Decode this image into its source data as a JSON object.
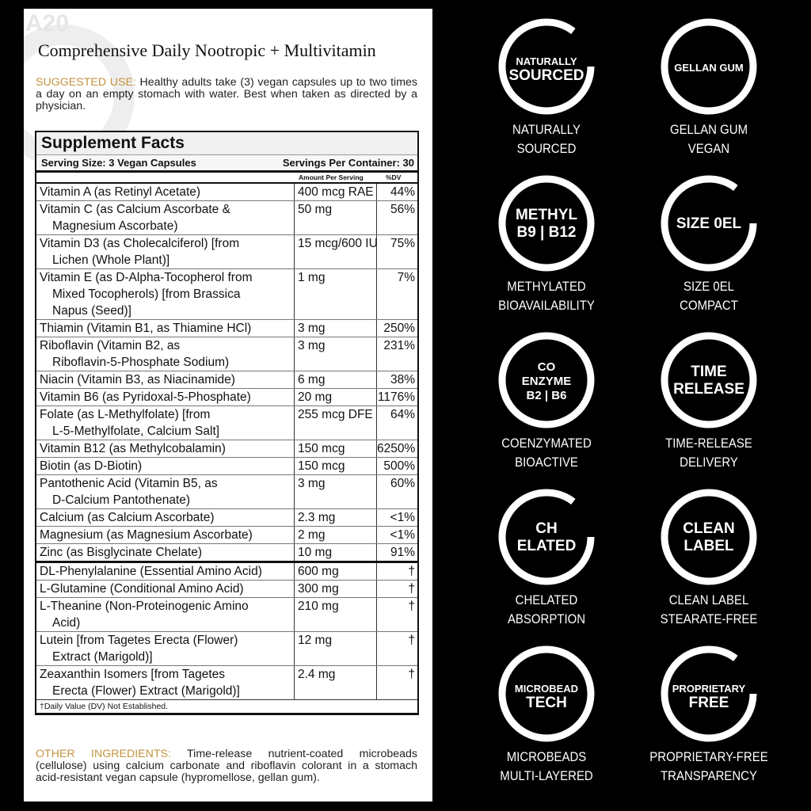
{
  "logo": "A20",
  "title": "Comprehensive Daily Nootropic + Multivitamin",
  "suggested_use": {
    "label": "SUGGESTED USE:",
    "text": " Healthy adults take (3) vegan capsules up to two times a day on an empty stomach with water. Best when taken as directed by a physician."
  },
  "facts": {
    "heading": "Supplement Facts",
    "serving_size": "Serving Size: 3 Vegan Capsules",
    "servings_per_container": "Servings Per Container: 30",
    "col_amount": "Amount Per Serving",
    "col_dv": "%DV",
    "group1": [
      {
        "name": "Vitamin A (as Retinyl Acetate)",
        "amount": "400 mcg RAE",
        "dv": "44%"
      },
      {
        "name": "Vitamin C (as Calcium Ascorbate &",
        "name2": "Magnesium Ascorbate)",
        "amount": "50 mg",
        "dv": "56%"
      },
      {
        "name": "Vitamin D3 (as Cholecalciferol) [from",
        "name2": "Lichen (Whole Plant)]",
        "amount": "15 mcg/600 IU",
        "dv": "75%"
      },
      {
        "name": "Vitamin E (as D-Alpha-Tocopherol from",
        "name2": "Mixed Tocopherols) [from Brassica",
        "name3": "Napus (Seed)]",
        "amount": "1 mg",
        "dv": "7%"
      },
      {
        "name": "Thiamin (Vitamin B1, as Thiamine HCl)",
        "amount": "3 mg",
        "dv": "250%"
      },
      {
        "name": "Riboflavin (Vitamin B2, as",
        "name2": "Riboflavin-5-Phosphate Sodium)",
        "amount": "3 mg",
        "dv": "231%"
      },
      {
        "name": "Niacin (Vitamin B3, as Niacinamide)",
        "amount": "6 mg",
        "dv": "38%"
      },
      {
        "name": "Vitamin B6 (as Pyridoxal-5-Phosphate)",
        "amount": "20 mg",
        "dv": "1176%"
      },
      {
        "name": "Folate (as L-Methylfolate) [from",
        "name2": "L-5-Methylfolate, Calcium Salt]",
        "amount": "255 mcg DFE",
        "dv": "64%"
      },
      {
        "name": "Vitamin B12 (as Methylcobalamin)",
        "amount": "150 mcg",
        "dv": "6250%"
      },
      {
        "name": "Biotin (as D-Biotin)",
        "amount": "150 mcg",
        "dv": "500%"
      },
      {
        "name": "Pantothenic Acid (Vitamin B5, as",
        "name2": "D-Calcium Pantothenate)",
        "amount": "3 mg",
        "dv": "60%"
      },
      {
        "name": "Calcium (as Calcium Ascorbate)",
        "amount": "2.3 mg",
        "dv": "<1%"
      },
      {
        "name": "Magnesium (as Magnesium Ascorbate)",
        "amount": "2 mg",
        "dv": "<1%"
      },
      {
        "name": "Zinc (as Bisglycinate Chelate)",
        "amount": "10 mg",
        "dv": "91%"
      }
    ],
    "group2": [
      {
        "name": "DL-Phenylalanine (Essential Amino Acid)",
        "amount": "600 mg",
        "dv": "†"
      },
      {
        "name": "L-Glutamine (Conditional Amino Acid)",
        "amount": "300 mg",
        "dv": "†"
      },
      {
        "name": "L-Theanine (Non-Proteinogenic Amino",
        "name2": "Acid)",
        "amount": "210 mg",
        "dv": "†"
      },
      {
        "name": "Lutein [from Tagetes Erecta (Flower)",
        "name2": "Extract (Marigold)]",
        "amount": "12 mg",
        "dv": "†"
      },
      {
        "name": "Zeaxanthin Isomers [from Tagetes",
        "name2": "Erecta (Flower) Extract (Marigold)]",
        "amount": "2.4 mg",
        "dv": "†"
      }
    ],
    "footnote": "†Daily Value (DV) Not Established."
  },
  "other_ingredients": {
    "label": "OTHER INGREDIENTS:",
    "text": " Time-release nutrient-coated microbeads (cellulose) using calcium carbonate and riboflavin colorant in a stomach acid-resistant vegan capsule (hypromellose, gellan gum)."
  },
  "badges": [
    {
      "icon": "naturally-sourced-icon",
      "icon_text": [
        "NATURALLY",
        "SOURCED"
      ],
      "line1": "NATURALLY",
      "line2": "SOURCED"
    },
    {
      "icon": "gellan-gum-icon",
      "icon_text": [
        "GELLAN GUM"
      ],
      "line1": "GELLAN GUM",
      "line2": "VEGAN"
    },
    {
      "icon": "methyl-icon",
      "icon_text": [
        "METHYL",
        "B9 | B12"
      ],
      "line1": "METHYLATED",
      "line2": "BIOAVAILABILITY"
    },
    {
      "icon": "size-0el-icon",
      "icon_text": [
        "SIZE 0EL"
      ],
      "line1": "SIZE 0EL",
      "line2": "COMPACT"
    },
    {
      "icon": "coenzyme-icon",
      "icon_text": [
        "CO",
        "ENZYME",
        "B2 | B6"
      ],
      "line1": "COENZYMATED",
      "line2": "BIOACTIVE"
    },
    {
      "icon": "time-release-icon",
      "icon_text": [
        "TIME",
        "RELEASE"
      ],
      "line1": "TIME-RELEASE",
      "line2": "DELIVERY"
    },
    {
      "icon": "chelated-icon",
      "icon_text": [
        "CH",
        "ELATED"
      ],
      "line1": "CHELATED",
      "line2": "ABSORPTION"
    },
    {
      "icon": "clean-label-icon",
      "icon_text": [
        "CLEAN",
        "LABEL"
      ],
      "line1": "CLEAN LABEL",
      "line2": "STEARATE-FREE"
    },
    {
      "icon": "microbead-icon",
      "icon_text": [
        "MICROBEAD",
        "TECH"
      ],
      "line1": "MICROBEADS",
      "line2": "MULTI-LAYERED"
    },
    {
      "icon": "proprietary-free-icon",
      "icon_text": [
        "PROPRIETARY",
        "FREE"
      ],
      "line1": "PROPRIETARY-FREE",
      "line2": "TRANSPARENCY"
    }
  ]
}
